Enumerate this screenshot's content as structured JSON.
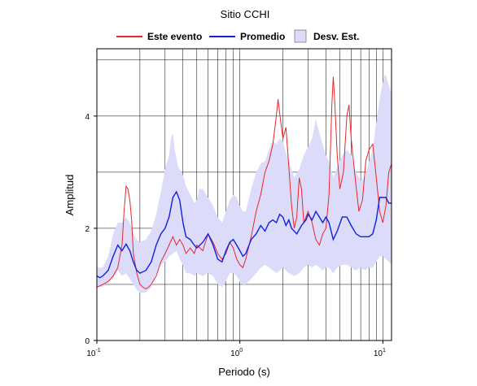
{
  "chart_data": {
    "type": "line",
    "title": "Sitio CCHI",
    "xlabel": "Periodo (s)",
    "ylabel": "Amplitud",
    "xscale": "log",
    "xlim": [
      0.1,
      11.5
    ],
    "ylim": [
      0,
      5.2
    ],
    "x_ticks": [
      {
        "value": 0.1,
        "base": "10",
        "exp": "-1"
      },
      {
        "value": 1,
        "base": "10",
        "exp": "0"
      },
      {
        "value": 10,
        "base": "10",
        "exp": "1"
      }
    ],
    "y_ticks": [
      0,
      2,
      4
    ],
    "grid": true,
    "legend_position": "top",
    "series": [
      {
        "name": "Este evento",
        "color": "#e8262b",
        "points": [
          [
            0.1,
            0.95
          ],
          [
            0.11,
            1.0
          ],
          [
            0.12,
            1.05
          ],
          [
            0.13,
            1.15
          ],
          [
            0.14,
            1.3
          ],
          [
            0.15,
            1.7
          ],
          [
            0.155,
            2.3
          ],
          [
            0.16,
            2.75
          ],
          [
            0.165,
            2.7
          ],
          [
            0.17,
            2.5
          ],
          [
            0.175,
            2.15
          ],
          [
            0.18,
            1.55
          ],
          [
            0.19,
            1.2
          ],
          [
            0.2,
            1.0
          ],
          [
            0.21,
            0.95
          ],
          [
            0.22,
            0.92
          ],
          [
            0.23,
            0.95
          ],
          [
            0.24,
            1.0
          ],
          [
            0.26,
            1.15
          ],
          [
            0.28,
            1.4
          ],
          [
            0.3,
            1.55
          ],
          [
            0.32,
            1.7
          ],
          [
            0.34,
            1.85
          ],
          [
            0.36,
            1.7
          ],
          [
            0.38,
            1.8
          ],
          [
            0.4,
            1.7
          ],
          [
            0.42,
            1.55
          ],
          [
            0.45,
            1.65
          ],
          [
            0.48,
            1.55
          ],
          [
            0.5,
            1.7
          ],
          [
            0.55,
            1.6
          ],
          [
            0.6,
            1.9
          ],
          [
            0.65,
            1.75
          ],
          [
            0.7,
            1.55
          ],
          [
            0.75,
            1.45
          ],
          [
            0.8,
            1.55
          ],
          [
            0.85,
            1.75
          ],
          [
            0.9,
            1.65
          ],
          [
            0.95,
            1.45
          ],
          [
            1.0,
            1.35
          ],
          [
            1.05,
            1.3
          ],
          [
            1.1,
            1.45
          ],
          [
            1.2,
            1.85
          ],
          [
            1.3,
            2.3
          ],
          [
            1.4,
            2.6
          ],
          [
            1.5,
            3.0
          ],
          [
            1.6,
            3.2
          ],
          [
            1.7,
            3.5
          ],
          [
            1.8,
            4.0
          ],
          [
            1.85,
            4.3
          ],
          [
            1.9,
            4.05
          ],
          [
            2.0,
            3.6
          ],
          [
            2.1,
            3.8
          ],
          [
            2.2,
            3.1
          ],
          [
            2.3,
            2.4
          ],
          [
            2.4,
            2.0
          ],
          [
            2.5,
            2.2
          ],
          [
            2.6,
            2.9
          ],
          [
            2.7,
            2.7
          ],
          [
            2.8,
            2.1
          ],
          [
            3.0,
            2.3
          ],
          [
            3.2,
            2.1
          ],
          [
            3.4,
            1.8
          ],
          [
            3.6,
            1.7
          ],
          [
            3.8,
            1.9
          ],
          [
            4.0,
            2.0
          ],
          [
            4.2,
            2.6
          ],
          [
            4.4,
            4.2
          ],
          [
            4.5,
            4.7
          ],
          [
            4.6,
            4.3
          ],
          [
            4.8,
            3.3
          ],
          [
            5.0,
            2.7
          ],
          [
            5.3,
            3.0
          ],
          [
            5.6,
            4.0
          ],
          [
            5.8,
            4.2
          ],
          [
            6.0,
            3.6
          ],
          [
            6.4,
            2.9
          ],
          [
            6.8,
            2.3
          ],
          [
            7.2,
            2.5
          ],
          [
            7.6,
            3.2
          ],
          [
            8.0,
            3.4
          ],
          [
            8.5,
            3.5
          ],
          [
            9.0,
            2.9
          ],
          [
            9.5,
            2.3
          ],
          [
            10.0,
            2.1
          ],
          [
            10.5,
            2.4
          ],
          [
            11.0,
            3.0
          ],
          [
            11.5,
            3.15
          ]
        ]
      },
      {
        "name": "Promedio",
        "color": "#1020dc",
        "points": [
          [
            0.1,
            1.15
          ],
          [
            0.105,
            1.12
          ],
          [
            0.11,
            1.15
          ],
          [
            0.12,
            1.25
          ],
          [
            0.13,
            1.5
          ],
          [
            0.14,
            1.7
          ],
          [
            0.15,
            1.6
          ],
          [
            0.16,
            1.72
          ],
          [
            0.17,
            1.6
          ],
          [
            0.18,
            1.4
          ],
          [
            0.19,
            1.25
          ],
          [
            0.2,
            1.2
          ],
          [
            0.22,
            1.25
          ],
          [
            0.24,
            1.4
          ],
          [
            0.26,
            1.7
          ],
          [
            0.28,
            1.9
          ],
          [
            0.3,
            2.0
          ],
          [
            0.32,
            2.2
          ],
          [
            0.34,
            2.55
          ],
          [
            0.36,
            2.65
          ],
          [
            0.38,
            2.5
          ],
          [
            0.4,
            2.1
          ],
          [
            0.42,
            1.85
          ],
          [
            0.45,
            1.8
          ],
          [
            0.48,
            1.7
          ],
          [
            0.5,
            1.65
          ],
          [
            0.55,
            1.75
          ],
          [
            0.6,
            1.9
          ],
          [
            0.65,
            1.7
          ],
          [
            0.7,
            1.45
          ],
          [
            0.75,
            1.4
          ],
          [
            0.8,
            1.6
          ],
          [
            0.85,
            1.75
          ],
          [
            0.9,
            1.8
          ],
          [
            0.95,
            1.7
          ],
          [
            1.0,
            1.6
          ],
          [
            1.05,
            1.5
          ],
          [
            1.1,
            1.55
          ],
          [
            1.2,
            1.8
          ],
          [
            1.3,
            1.9
          ],
          [
            1.4,
            2.05
          ],
          [
            1.5,
            1.95
          ],
          [
            1.6,
            2.1
          ],
          [
            1.7,
            2.15
          ],
          [
            1.8,
            2.1
          ],
          [
            1.9,
            2.25
          ],
          [
            2.0,
            2.2
          ],
          [
            2.1,
            2.05
          ],
          [
            2.2,
            2.15
          ],
          [
            2.3,
            2.0
          ],
          [
            2.5,
            1.9
          ],
          [
            2.7,
            2.05
          ],
          [
            2.9,
            2.15
          ],
          [
            3.0,
            2.25
          ],
          [
            3.2,
            2.15
          ],
          [
            3.4,
            2.3
          ],
          [
            3.6,
            2.2
          ],
          [
            3.8,
            2.1
          ],
          [
            4.0,
            2.2
          ],
          [
            4.2,
            2.1
          ],
          [
            4.5,
            1.8
          ],
          [
            4.8,
            1.95
          ],
          [
            5.2,
            2.2
          ],
          [
            5.6,
            2.2
          ],
          [
            6.0,
            2.05
          ],
          [
            6.5,
            1.9
          ],
          [
            7.0,
            1.85
          ],
          [
            7.5,
            1.85
          ],
          [
            8.0,
            1.85
          ],
          [
            8.5,
            1.9
          ],
          [
            9.0,
            2.15
          ],
          [
            9.5,
            2.55
          ],
          [
            10.0,
            2.55
          ],
          [
            10.5,
            2.55
          ],
          [
            11.0,
            2.45
          ],
          [
            11.5,
            2.45
          ]
        ]
      }
    ],
    "band": {
      "name": "Desv. Est.",
      "fill": "#dcdcfa",
      "upper": [
        [
          0.1,
          1.3
        ],
        [
          0.11,
          1.3
        ],
        [
          0.12,
          1.5
        ],
        [
          0.13,
          1.9
        ],
        [
          0.14,
          2.1
        ],
        [
          0.15,
          2.1
        ],
        [
          0.16,
          2.2
        ],
        [
          0.17,
          2.1
        ],
        [
          0.18,
          1.9
        ],
        [
          0.19,
          1.8
        ],
        [
          0.2,
          1.75
        ],
        [
          0.22,
          1.8
        ],
        [
          0.24,
          1.95
        ],
        [
          0.26,
          2.25
        ],
        [
          0.28,
          2.65
        ],
        [
          0.3,
          3.05
        ],
        [
          0.32,
          3.3
        ],
        [
          0.33,
          3.6
        ],
        [
          0.34,
          3.7
        ],
        [
          0.35,
          3.4
        ],
        [
          0.37,
          3.1
        ],
        [
          0.4,
          2.95
        ],
        [
          0.42,
          2.75
        ],
        [
          0.45,
          2.6
        ],
        [
          0.48,
          2.45
        ],
        [
          0.5,
          2.5
        ],
        [
          0.52,
          2.7
        ],
        [
          0.55,
          2.7
        ],
        [
          0.6,
          2.55
        ],
        [
          0.65,
          2.4
        ],
        [
          0.7,
          2.2
        ],
        [
          0.75,
          2.1
        ],
        [
          0.8,
          2.3
        ],
        [
          0.85,
          2.5
        ],
        [
          0.9,
          2.6
        ],
        [
          0.95,
          2.55
        ],
        [
          1.0,
          2.4
        ],
        [
          1.05,
          2.3
        ],
        [
          1.1,
          2.3
        ],
        [
          1.2,
          2.7
        ],
        [
          1.3,
          3.0
        ],
        [
          1.4,
          3.15
        ],
        [
          1.5,
          3.2
        ],
        [
          1.6,
          3.4
        ],
        [
          1.7,
          3.55
        ],
        [
          1.8,
          3.5
        ],
        [
          1.9,
          3.6
        ],
        [
          2.0,
          3.55
        ],
        [
          2.1,
          3.35
        ],
        [
          2.2,
          3.2
        ],
        [
          2.4,
          2.9
        ],
        [
          2.6,
          3.05
        ],
        [
          2.8,
          3.3
        ],
        [
          3.0,
          3.45
        ],
        [
          3.2,
          3.6
        ],
        [
          3.4,
          3.95
        ],
        [
          3.6,
          3.7
        ],
        [
          3.8,
          3.5
        ],
        [
          4.0,
          3.3
        ],
        [
          4.2,
          3.2
        ],
        [
          4.5,
          2.9
        ],
        [
          4.8,
          3.1
        ],
        [
          5.2,
          3.3
        ],
        [
          5.6,
          3.4
        ],
        [
          6.0,
          3.3
        ],
        [
          6.5,
          3.0
        ],
        [
          7.0,
          2.85
        ],
        [
          7.5,
          2.9
        ],
        [
          8.0,
          3.2
        ],
        [
          8.5,
          3.4
        ],
        [
          9.0,
          3.9
        ],
        [
          9.5,
          4.3
        ],
        [
          10.0,
          4.6
        ],
        [
          10.3,
          4.75
        ],
        [
          10.6,
          4.7
        ],
        [
          11.0,
          4.55
        ],
        [
          11.5,
          4.4
        ]
      ],
      "lower": [
        [
          0.1,
          0.95
        ],
        [
          0.11,
          0.95
        ],
        [
          0.12,
          1.05
        ],
        [
          0.13,
          1.1
        ],
        [
          0.14,
          1.25
        ],
        [
          0.15,
          1.15
        ],
        [
          0.16,
          1.2
        ],
        [
          0.17,
          1.1
        ],
        [
          0.18,
          1.0
        ],
        [
          0.19,
          0.9
        ],
        [
          0.2,
          0.85
        ],
        [
          0.22,
          0.85
        ],
        [
          0.24,
          0.95
        ],
        [
          0.26,
          1.2
        ],
        [
          0.28,
          1.35
        ],
        [
          0.3,
          1.4
        ],
        [
          0.32,
          1.5
        ],
        [
          0.34,
          1.55
        ],
        [
          0.36,
          1.6
        ],
        [
          0.38,
          1.45
        ],
        [
          0.4,
          1.35
        ],
        [
          0.42,
          1.2
        ],
        [
          0.45,
          1.2
        ],
        [
          0.48,
          1.15
        ],
        [
          0.5,
          1.2
        ],
        [
          0.55,
          1.15
        ],
        [
          0.6,
          1.2
        ],
        [
          0.65,
          1.15
        ],
        [
          0.7,
          1.0
        ],
        [
          0.75,
          0.95
        ],
        [
          0.8,
          1.05
        ],
        [
          0.85,
          1.2
        ],
        [
          0.9,
          1.2
        ],
        [
          0.95,
          1.15
        ],
        [
          1.0,
          1.05
        ],
        [
          1.05,
          1.0
        ],
        [
          1.1,
          1.0
        ],
        [
          1.2,
          1.1
        ],
        [
          1.3,
          1.2
        ],
        [
          1.4,
          1.3
        ],
        [
          1.5,
          1.35
        ],
        [
          1.6,
          1.3
        ],
        [
          1.7,
          1.25
        ],
        [
          1.8,
          1.2
        ],
        [
          1.9,
          1.25
        ],
        [
          2.0,
          1.3
        ],
        [
          2.2,
          1.2
        ],
        [
          2.4,
          1.15
        ],
        [
          2.6,
          1.2
        ],
        [
          2.8,
          1.3
        ],
        [
          3.0,
          1.35
        ],
        [
          3.2,
          1.3
        ],
        [
          3.4,
          1.35
        ],
        [
          3.6,
          1.3
        ],
        [
          3.8,
          1.25
        ],
        [
          4.0,
          1.3
        ],
        [
          4.2,
          1.3
        ],
        [
          4.5,
          1.2
        ],
        [
          4.8,
          1.3
        ],
        [
          5.2,
          1.35
        ],
        [
          5.6,
          1.35
        ],
        [
          6.0,
          1.3
        ],
        [
          6.5,
          1.25
        ],
        [
          7.0,
          1.3
        ],
        [
          7.5,
          1.25
        ],
        [
          8.0,
          1.3
        ],
        [
          8.5,
          1.3
        ],
        [
          9.0,
          1.4
        ],
        [
          9.5,
          1.5
        ],
        [
          10.0,
          1.5
        ],
        [
          10.5,
          1.45
        ],
        [
          11.0,
          1.4
        ],
        [
          11.5,
          1.35
        ]
      ]
    }
  }
}
